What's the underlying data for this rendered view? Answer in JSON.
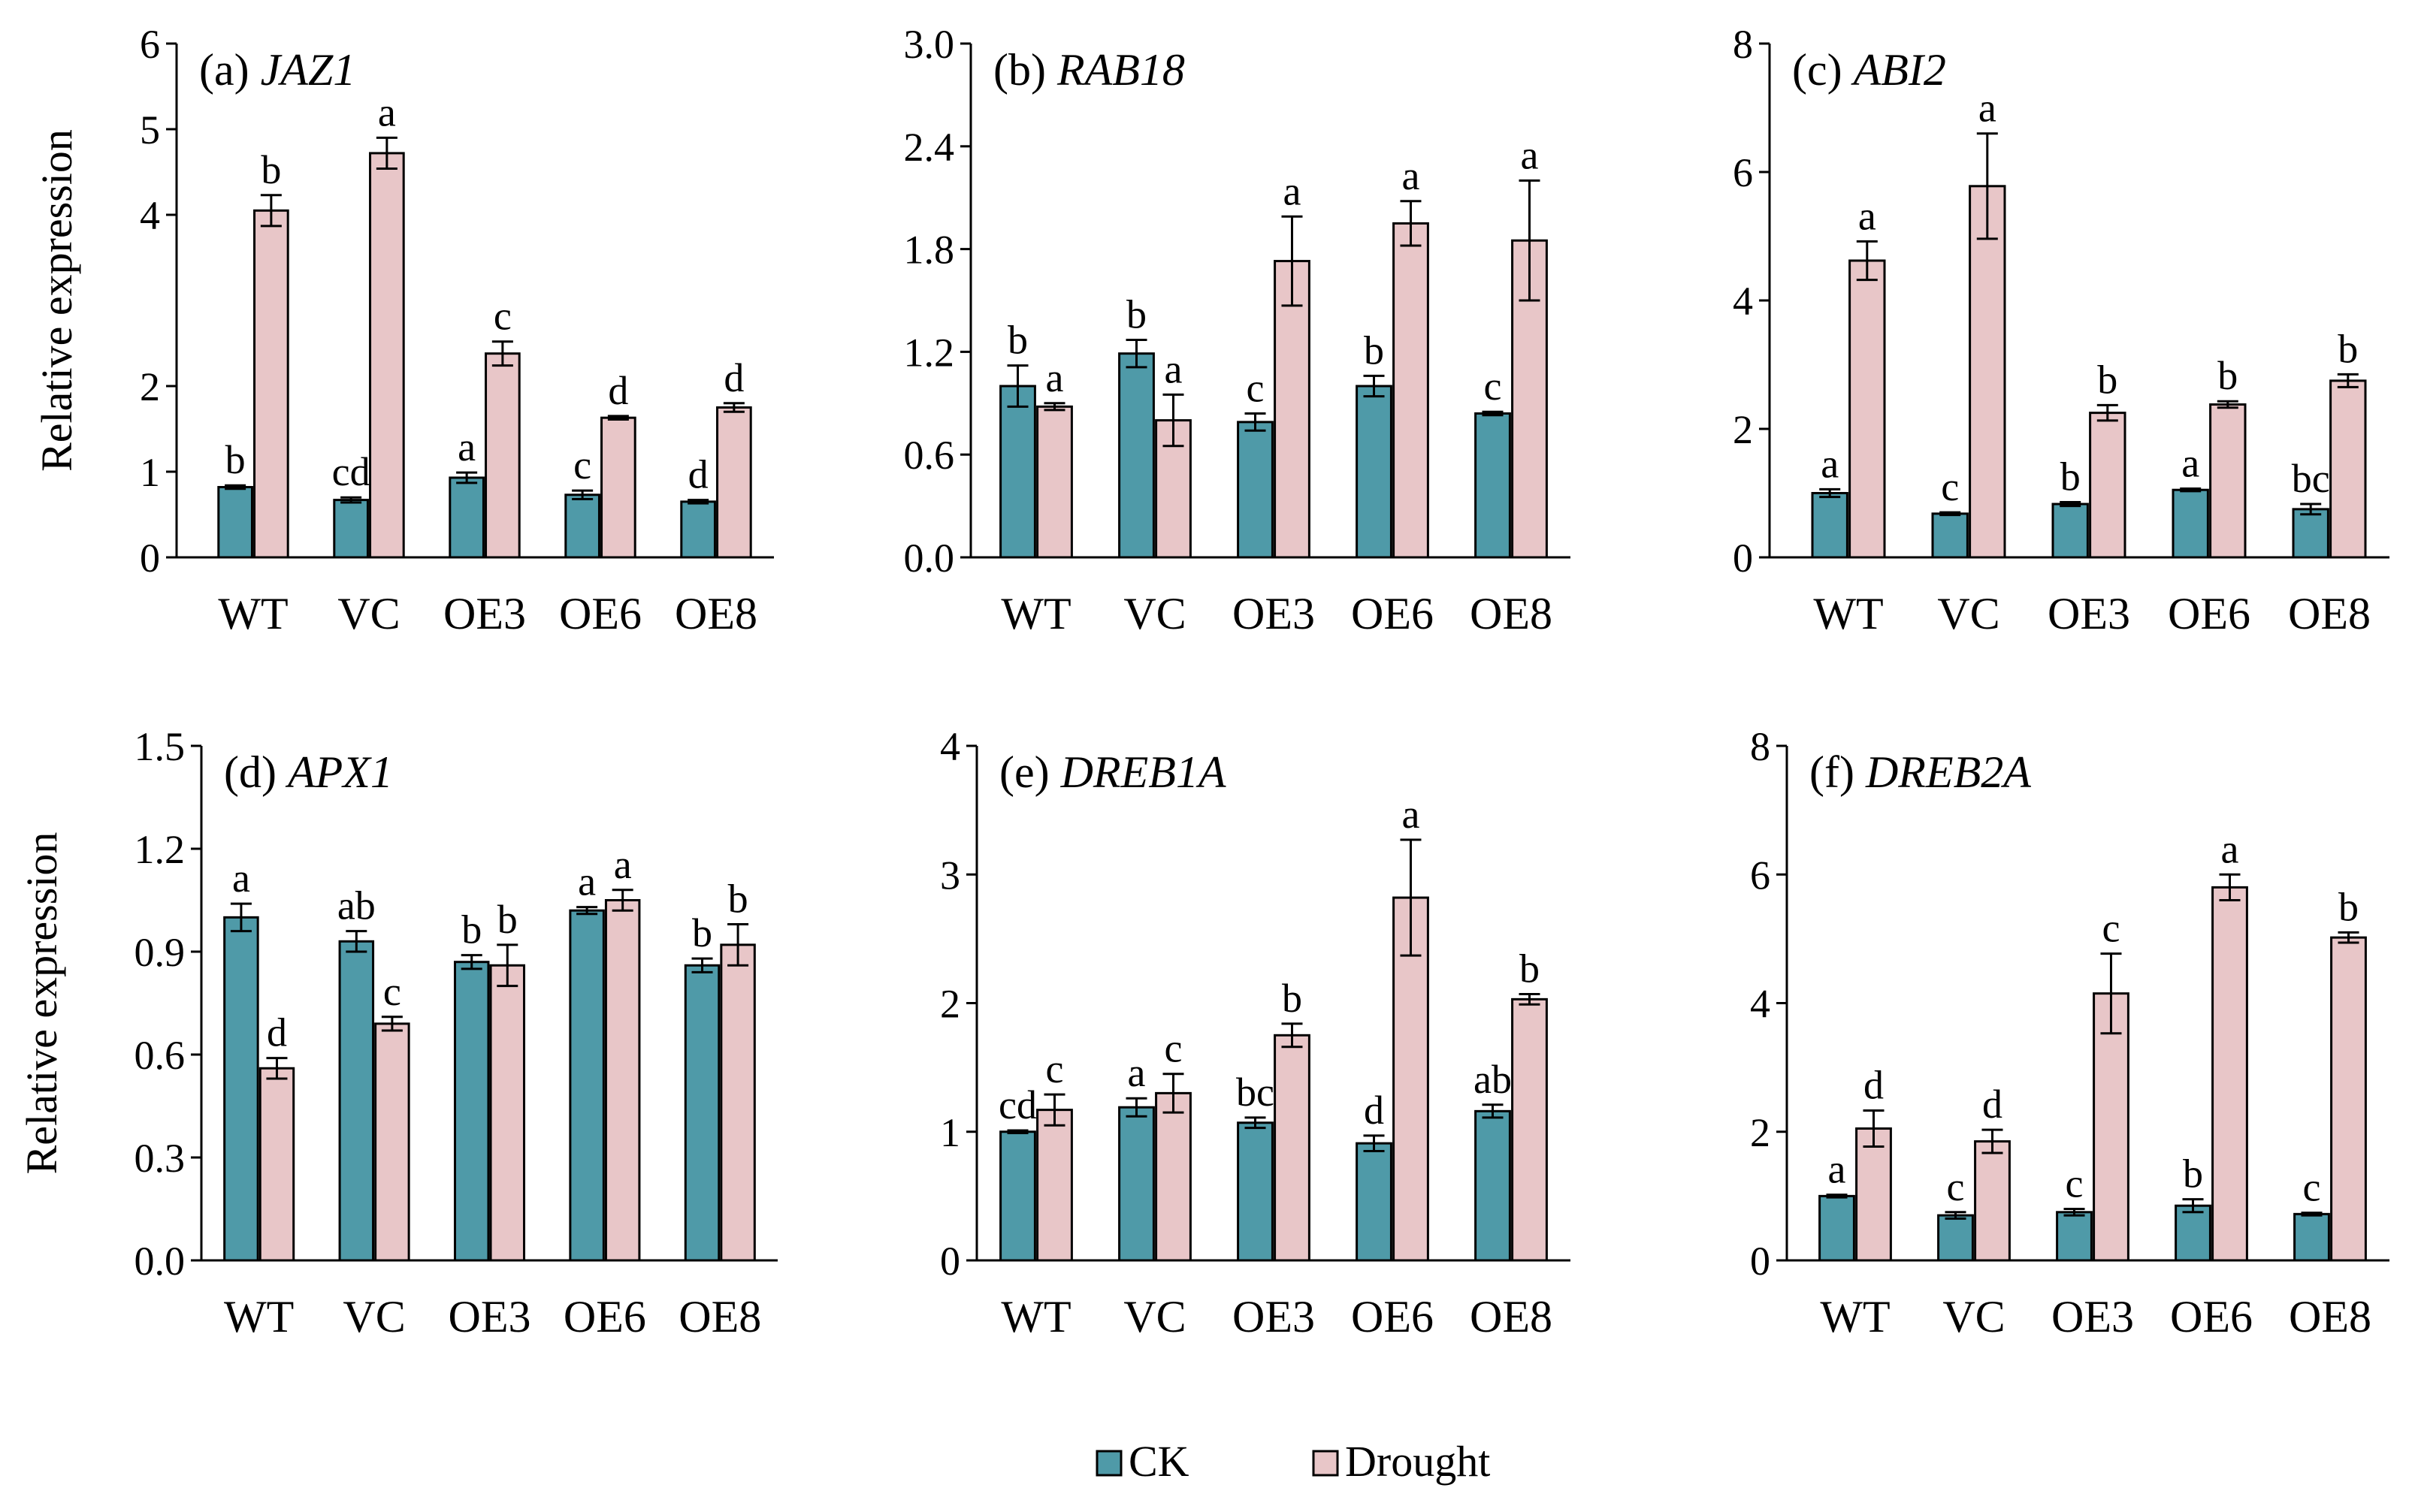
{
  "figure": {
    "legend": {
      "ck_label": "CK",
      "drought_label": "Drought"
    },
    "y_axis_label": "Relative expression"
  },
  "colors": {
    "ck": "#4f9aa8",
    "drought": "#e8c6c8",
    "axis": "#000000"
  },
  "chart_data": [
    {
      "type": "bar",
      "id": "a",
      "title_prefix": "(a)",
      "gene": "JAZ1",
      "categories": [
        "WT",
        "VC",
        "OE3",
        "OE6",
        "OE8"
      ],
      "ylim": [
        0,
        6
      ],
      "yticks": [
        "0",
        "1",
        "2",
        "4",
        "5",
        "6"
      ],
      "yticks_note": "tick labels printed as shown; the label '3' is absent in the original",
      "series": [
        {
          "name": "CK",
          "values": [
            0.82,
            0.67,
            0.93,
            0.73,
            0.65
          ],
          "errors": [
            0.02,
            0.03,
            0.06,
            0.05,
            0.02
          ],
          "letters": [
            "b",
            "cd",
            "a",
            "c",
            "d"
          ]
        },
        {
          "name": "Drought",
          "values": [
            4.05,
            4.72,
            2.38,
            1.63,
            1.75
          ],
          "errors": [
            0.18,
            0.18,
            0.14,
            0.02,
            0.05
          ],
          "letters": [
            "b",
            "a",
            "c",
            "d",
            "d"
          ]
        }
      ],
      "xlabel": "",
      "ylabel": "Relative expression"
    },
    {
      "type": "bar",
      "id": "b",
      "title_prefix": "(b)",
      "gene": "RAB18",
      "categories": [
        "WT",
        "VC",
        "OE3",
        "OE6",
        "OE8"
      ],
      "ylim": [
        0,
        3.0
      ],
      "yticks": [
        "0.0",
        "0.6",
        "1.2",
        "1.8",
        "2.4",
        "3.0"
      ],
      "series": [
        {
          "name": "CK",
          "values": [
            1.0,
            1.19,
            0.79,
            1.0,
            0.84
          ],
          "errors": [
            0.12,
            0.08,
            0.05,
            0.06,
            0.01
          ],
          "letters": [
            "b",
            "b",
            "c",
            "b",
            "c"
          ]
        },
        {
          "name": "Drought",
          "values": [
            0.88,
            0.8,
            1.73,
            1.95,
            1.85
          ],
          "errors": [
            0.02,
            0.15,
            0.26,
            0.13,
            0.35
          ],
          "letters": [
            "a",
            "a",
            "a",
            "a",
            "a"
          ]
        }
      ],
      "xlabel": "",
      "ylabel": ""
    },
    {
      "type": "bar",
      "id": "c",
      "title_prefix": "(c)",
      "gene": "ABI2",
      "categories": [
        "WT",
        "VC",
        "OE3",
        "OE6",
        "OE8"
      ],
      "ylim": [
        0,
        8
      ],
      "yticks": [
        "0",
        "2",
        "4",
        "6",
        "8"
      ],
      "series": [
        {
          "name": "CK",
          "values": [
            1.0,
            0.68,
            0.83,
            1.05,
            0.75
          ],
          "errors": [
            0.06,
            0.02,
            0.03,
            0.02,
            0.08
          ],
          "letters": [
            "a",
            "c",
            "b",
            "a",
            "bc"
          ]
        },
        {
          "name": "Drought",
          "values": [
            4.62,
            5.78,
            2.25,
            2.38,
            2.75
          ],
          "errors": [
            0.3,
            0.82,
            0.12,
            0.05,
            0.1
          ],
          "letters": [
            "a",
            "a",
            "b",
            "b",
            "b"
          ]
        }
      ],
      "xlabel": "",
      "ylabel": ""
    },
    {
      "type": "bar",
      "id": "d",
      "title_prefix": "(d)",
      "gene": "APX1",
      "categories": [
        "WT",
        "VC",
        "OE3",
        "OE6",
        "OE8"
      ],
      "ylim": [
        0,
        1.5
      ],
      "yticks": [
        "0.0",
        "0.3",
        "0.6",
        "0.9",
        "1.2",
        "1.5"
      ],
      "series": [
        {
          "name": "CK",
          "values": [
            1.0,
            0.93,
            0.87,
            1.02,
            0.86
          ],
          "errors": [
            0.04,
            0.03,
            0.02,
            0.01,
            0.02
          ],
          "letters": [
            "a",
            "ab",
            "b",
            "a",
            "b"
          ]
        },
        {
          "name": "Drought",
          "values": [
            0.56,
            0.69,
            0.86,
            1.05,
            0.92
          ],
          "errors": [
            0.03,
            0.02,
            0.06,
            0.03,
            0.06
          ],
          "letters": [
            "d",
            "c",
            "b",
            "a",
            "b"
          ]
        }
      ],
      "xlabel": "",
      "ylabel": "Relative expression"
    },
    {
      "type": "bar",
      "id": "e",
      "title_prefix": "(e)",
      "gene": "DREB1A",
      "categories": [
        "WT",
        "VC",
        "OE3",
        "OE6",
        "OE8"
      ],
      "ylim": [
        0,
        4
      ],
      "yticks": [
        "0",
        "1",
        "2",
        "3",
        "4"
      ],
      "series": [
        {
          "name": "CK",
          "values": [
            1.0,
            1.19,
            1.07,
            0.91,
            1.16
          ],
          "errors": [
            0.01,
            0.07,
            0.04,
            0.06,
            0.05
          ],
          "letters": [
            "cd",
            "a",
            "bc",
            "d",
            "ab"
          ]
        },
        {
          "name": "Drought",
          "values": [
            1.17,
            1.3,
            1.75,
            2.82,
            2.03
          ],
          "errors": [
            0.12,
            0.15,
            0.09,
            0.45,
            0.04
          ],
          "letters": [
            "c",
            "c",
            "b",
            "a",
            "b"
          ]
        }
      ],
      "xlabel": "",
      "ylabel": ""
    },
    {
      "type": "bar",
      "id": "f",
      "title_prefix": "(f)",
      "gene": "DREB2A",
      "categories": [
        "WT",
        "VC",
        "OE3",
        "OE6",
        "OE8"
      ],
      "ylim": [
        0,
        8
      ],
      "yticks": [
        "0",
        "2",
        "4",
        "6",
        "8"
      ],
      "series": [
        {
          "name": "CK",
          "values": [
            1.0,
            0.7,
            0.75,
            0.85,
            0.72
          ],
          "errors": [
            0.02,
            0.05,
            0.05,
            0.1,
            0.02
          ],
          "letters": [
            "a",
            "c",
            "c",
            "b",
            "c"
          ]
        },
        {
          "name": "Drought",
          "values": [
            2.05,
            1.85,
            4.15,
            5.8,
            5.02
          ],
          "errors": [
            0.28,
            0.18,
            0.62,
            0.2,
            0.08
          ],
          "letters": [
            "d",
            "d",
            "c",
            "a",
            "b"
          ]
        }
      ],
      "xlabel": "",
      "ylabel": ""
    }
  ]
}
